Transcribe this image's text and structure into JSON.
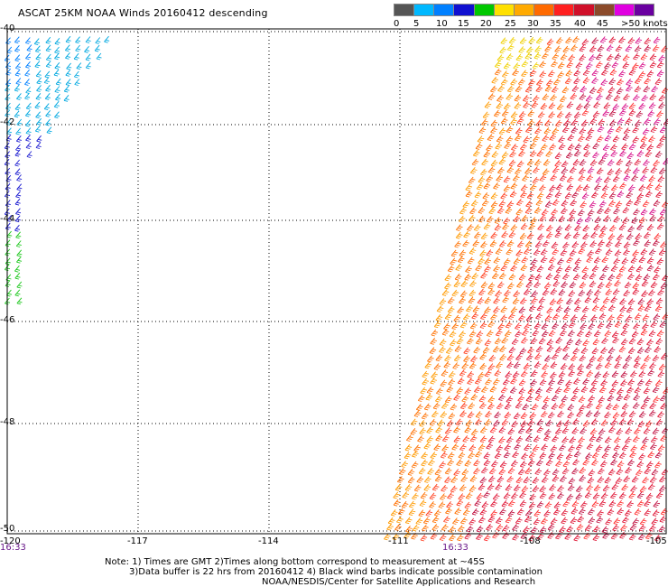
{
  "title": "ASCAT 25KM NOAA Winds 20160412 descending",
  "colorbar": {
    "labels": [
      "0",
      "5",
      "10",
      "15",
      "20",
      "25",
      "30",
      "35",
      "40",
      "45",
      ">50 knots"
    ],
    "colors": [
      "#555555",
      "#00b8ff",
      "#0080ff",
      "#1010d0",
      "#00c800",
      "#ffe000",
      "#ffaa00",
      "#ff6a00",
      "#ff2020",
      "#d0102a",
      "#8b4a2a",
      "#e000e0",
      "#6a00a0"
    ]
  },
  "axes": {
    "lat_labels": [
      "-40",
      "-42",
      "-44",
      "-46",
      "-48",
      "-50"
    ],
    "lon_labels": [
      "-120",
      "-117",
      "-114",
      "-111",
      "-108",
      "-105"
    ],
    "lat_range": [
      -50,
      -40
    ],
    "lon_range": [
      -120,
      -105
    ]
  },
  "swaths": {
    "west_time": "16:33",
    "east_time": "16:33"
  },
  "notes": {
    "line1": "Note: 1) Times are GMT 2)Times along bottom correspond to measurement at ~45S",
    "line2": "3)Data buffer is 22 hrs from 20160412 4) Black wind barbs indicate possible contamination",
    "line3": "NOAA/NESDIS/Center for Satellite Applications and Research"
  }
}
